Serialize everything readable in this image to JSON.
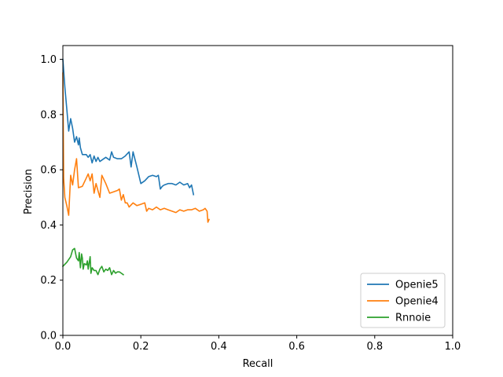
{
  "chart_data": {
    "type": "line",
    "title": "",
    "xlabel": "Recall",
    "ylabel": "Precision",
    "xlim": [
      0,
      1
    ],
    "ylim": [
      0,
      1.05
    ],
    "x_ticks": [
      "0.0",
      "0.2",
      "0.4",
      "0.6",
      "0.8",
      "1.0"
    ],
    "y_ticks": [
      "0.0",
      "0.2",
      "0.4",
      "0.6",
      "0.8",
      "1.0"
    ],
    "grid": false,
    "legend_position": "lower-right",
    "series": [
      {
        "name": "Openie5",
        "color": "#1f77b4",
        "x": [
          0.0,
          0.005,
          0.01,
          0.015,
          0.02,
          0.025,
          0.03,
          0.035,
          0.04,
          0.042,
          0.045,
          0.05,
          0.055,
          0.06,
          0.065,
          0.07,
          0.075,
          0.08,
          0.085,
          0.09,
          0.095,
          0.1,
          0.11,
          0.12,
          0.125,
          0.13,
          0.14,
          0.15,
          0.16,
          0.17,
          0.175,
          0.18,
          0.19,
          0.2,
          0.21,
          0.22,
          0.23,
          0.24,
          0.245,
          0.25,
          0.255,
          0.26,
          0.27,
          0.28,
          0.29,
          0.3,
          0.31,
          0.32,
          0.325,
          0.33,
          0.335
        ],
        "y": [
          1.0,
          0.9,
          0.82,
          0.74,
          0.785,
          0.75,
          0.7,
          0.72,
          0.69,
          0.715,
          0.68,
          0.655,
          0.655,
          0.655,
          0.645,
          0.655,
          0.625,
          0.65,
          0.63,
          0.645,
          0.63,
          0.635,
          0.645,
          0.635,
          0.665,
          0.645,
          0.64,
          0.64,
          0.65,
          0.665,
          0.61,
          0.665,
          0.61,
          0.55,
          0.56,
          0.575,
          0.58,
          0.575,
          0.58,
          0.53,
          0.54,
          0.545,
          0.55,
          0.55,
          0.545,
          0.555,
          0.545,
          0.55,
          0.535,
          0.545,
          0.51
        ]
      },
      {
        "name": "Openie4",
        "color": "#ff7f0e",
        "x": [
          0.0,
          0.002,
          0.005,
          0.01,
          0.015,
          0.02,
          0.025,
          0.03,
          0.035,
          0.04,
          0.05,
          0.06,
          0.065,
          0.07,
          0.075,
          0.08,
          0.085,
          0.09,
          0.095,
          0.1,
          0.11,
          0.12,
          0.13,
          0.14,
          0.145,
          0.15,
          0.155,
          0.16,
          0.165,
          0.17,
          0.18,
          0.19,
          0.2,
          0.21,
          0.215,
          0.22,
          0.23,
          0.24,
          0.25,
          0.26,
          0.27,
          0.28,
          0.29,
          0.3,
          0.31,
          0.32,
          0.33,
          0.34,
          0.35,
          0.36,
          0.365,
          0.37,
          0.372,
          0.375
        ],
        "y": [
          0.95,
          0.57,
          0.5,
          0.47,
          0.435,
          0.58,
          0.545,
          0.6,
          0.64,
          0.535,
          0.54,
          0.57,
          0.585,
          0.56,
          0.585,
          0.515,
          0.55,
          0.525,
          0.5,
          0.58,
          0.55,
          0.515,
          0.52,
          0.525,
          0.53,
          0.49,
          0.51,
          0.48,
          0.48,
          0.465,
          0.48,
          0.47,
          0.475,
          0.48,
          0.45,
          0.46,
          0.455,
          0.465,
          0.455,
          0.46,
          0.455,
          0.45,
          0.445,
          0.455,
          0.45,
          0.455,
          0.455,
          0.46,
          0.45,
          0.455,
          0.46,
          0.45,
          0.41,
          0.42
        ]
      },
      {
        "name": "Rnnoie",
        "color": "#2ca02c",
        "x": [
          0.0,
          0.01,
          0.02,
          0.025,
          0.03,
          0.035,
          0.04,
          0.042,
          0.045,
          0.048,
          0.05,
          0.052,
          0.055,
          0.06,
          0.063,
          0.065,
          0.07,
          0.072,
          0.075,
          0.08,
          0.085,
          0.09,
          0.095,
          0.1,
          0.105,
          0.11,
          0.115,
          0.12,
          0.125,
          0.13,
          0.135,
          0.14,
          0.145,
          0.15,
          0.155
        ],
        "y": [
          0.25,
          0.265,
          0.285,
          0.31,
          0.315,
          0.28,
          0.27,
          0.3,
          0.245,
          0.295,
          0.28,
          0.24,
          0.26,
          0.255,
          0.27,
          0.24,
          0.285,
          0.225,
          0.245,
          0.235,
          0.235,
          0.22,
          0.24,
          0.25,
          0.23,
          0.24,
          0.235,
          0.245,
          0.22,
          0.235,
          0.225,
          0.23,
          0.23,
          0.225,
          0.22
        ]
      }
    ]
  }
}
